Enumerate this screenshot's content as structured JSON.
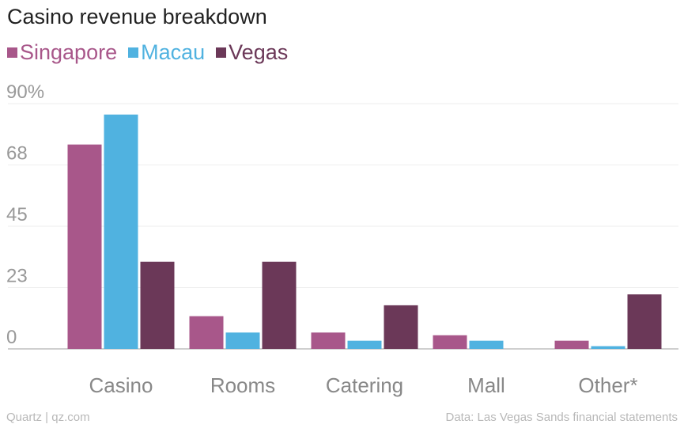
{
  "chart_data": {
    "type": "bar",
    "title": "Casino revenue breakdown",
    "categories": [
      "Casino",
      "Rooms",
      "Catering",
      "Mall",
      "Other*"
    ],
    "series": [
      {
        "name": "Singapore",
        "color": "#a8578a",
        "values": [
          75,
          12,
          6,
          5,
          3
        ]
      },
      {
        "name": "Macau",
        "color": "#50b2e0",
        "values": [
          86,
          6,
          3,
          3,
          1
        ]
      },
      {
        "name": "Vegas",
        "color": "#6b3858",
        "values": [
          32,
          32,
          16,
          0,
          20
        ]
      }
    ],
    "yticks": [
      "0",
      "23",
      "45",
      "68",
      "90%"
    ],
    "ylim": [
      0,
      90
    ],
    "grid": true,
    "legend_position": "top-left"
  },
  "footer": {
    "source_left": "Quartz | qz.com",
    "source_right": "Data: Las Vegas Sands financial statements"
  }
}
